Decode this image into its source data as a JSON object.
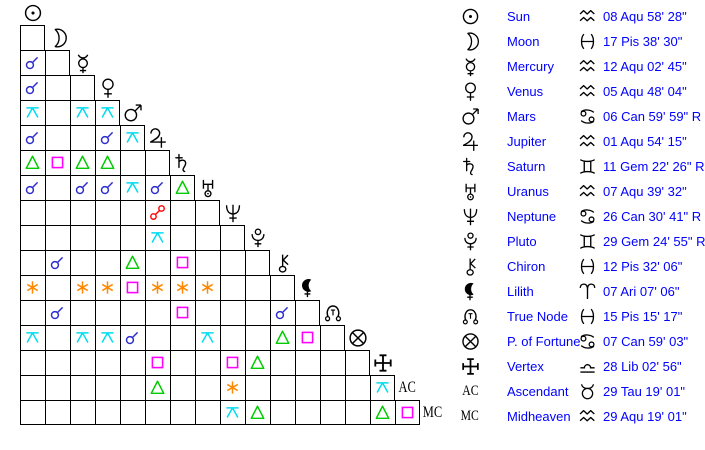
{
  "colors": {
    "table_text": "#0000ff",
    "glyph": "#000000",
    "grid_line": "#000000",
    "conjunction": "#2e2ecf",
    "sextile": "#ff8800",
    "square": "#ff00ff",
    "trine": "#00cc00",
    "quincunx": "#00dcf0",
    "opposition": "#ff0000"
  },
  "planets": [
    {
      "id": "sun",
      "name": "Sun",
      "icon": "sun-icon",
      "sign": "aquarius",
      "sign_icon": "aquarius-icon",
      "position": "08 Aqu 58' 28\""
    },
    {
      "id": "moon",
      "name": "Moon",
      "icon": "moon-icon",
      "sign": "pisces",
      "sign_icon": "pisces-icon",
      "position": "17 Pis 38' 30\""
    },
    {
      "id": "mercury",
      "name": "Mercury",
      "icon": "mercury-icon",
      "sign": "aquarius",
      "sign_icon": "aquarius-icon",
      "position": "12 Aqu 02' 45\""
    },
    {
      "id": "venus",
      "name": "Venus",
      "icon": "venus-icon",
      "sign": "aquarius",
      "sign_icon": "aquarius-icon",
      "position": "05 Aqu 48' 04\""
    },
    {
      "id": "mars",
      "name": "Mars",
      "icon": "mars-icon",
      "sign": "cancer",
      "sign_icon": "cancer-icon",
      "position": "06 Can 59' 59\" R"
    },
    {
      "id": "jupiter",
      "name": "Jupiter",
      "icon": "jupiter-icon",
      "sign": "aquarius",
      "sign_icon": "aquarius-icon",
      "position": "01 Aqu 54' 15\""
    },
    {
      "id": "saturn",
      "name": "Saturn",
      "icon": "saturn-icon",
      "sign": "gemini",
      "sign_icon": "gemini-icon",
      "position": "11 Gem 22' 26\" R"
    },
    {
      "id": "uranus",
      "name": "Uranus",
      "icon": "uranus-icon",
      "sign": "aquarius",
      "sign_icon": "aquarius-icon",
      "position": "07 Aqu 39' 32\""
    },
    {
      "id": "neptune",
      "name": "Neptune",
      "icon": "neptune-icon",
      "sign": "cancer",
      "sign_icon": "cancer-icon",
      "position": "26 Can 30' 41\" R"
    },
    {
      "id": "pluto",
      "name": "Pluto",
      "icon": "pluto-icon",
      "sign": "gemini",
      "sign_icon": "gemini-icon",
      "position": "29 Gem 24' 55\" R"
    },
    {
      "id": "chiron",
      "name": "Chiron",
      "icon": "chiron-icon",
      "sign": "pisces",
      "sign_icon": "pisces-icon",
      "position": "12 Pis 32' 06\""
    },
    {
      "id": "lilith",
      "name": "Lilith",
      "icon": "lilith-icon",
      "sign": "aries",
      "sign_icon": "aries-icon",
      "position": "07 Ari 07' 06\""
    },
    {
      "id": "truenode",
      "name": "True Node",
      "icon": "truenode-icon",
      "sign": "pisces",
      "sign_icon": "pisces-icon",
      "position": "15 Pis 15' 17\""
    },
    {
      "id": "fortune",
      "name": "P. of Fortune",
      "icon": "fortune-icon",
      "sign": "cancer",
      "sign_icon": "cancer-icon",
      "position": "07 Can 59' 03\""
    },
    {
      "id": "vertex",
      "name": "Vertex",
      "icon": "vertex-icon",
      "sign": "libra",
      "sign_icon": "libra-icon",
      "position": "28 Lib 02' 56\""
    },
    {
      "id": "ac",
      "name": "Ascendant",
      "icon": "ac-label",
      "glyph_text": "AC",
      "sign": "taurus",
      "sign_icon": "taurus-icon",
      "position": "29 Tau 19' 01\""
    },
    {
      "id": "mc",
      "name": "Midheaven",
      "icon": "mc-label",
      "glyph_text": "MC",
      "sign": "aquarius",
      "sign_icon": "aquarius-icon",
      "position": "29 Aqu 19' 01\""
    }
  ],
  "aspects": [
    {
      "row": 2,
      "col": 0,
      "type": "conjunction"
    },
    {
      "row": 3,
      "col": 0,
      "type": "conjunction"
    },
    {
      "row": 4,
      "col": 0,
      "type": "quincunx"
    },
    {
      "row": 4,
      "col": 2,
      "type": "quincunx"
    },
    {
      "row": 4,
      "col": 3,
      "type": "quincunx"
    },
    {
      "row": 5,
      "col": 0,
      "type": "conjunction"
    },
    {
      "row": 5,
      "col": 3,
      "type": "conjunction"
    },
    {
      "row": 5,
      "col": 4,
      "type": "quincunx"
    },
    {
      "row": 6,
      "col": 0,
      "type": "trine"
    },
    {
      "row": 6,
      "col": 1,
      "type": "square"
    },
    {
      "row": 6,
      "col": 2,
      "type": "trine"
    },
    {
      "row": 6,
      "col": 3,
      "type": "trine"
    },
    {
      "row": 7,
      "col": 0,
      "type": "conjunction"
    },
    {
      "row": 7,
      "col": 2,
      "type": "conjunction"
    },
    {
      "row": 7,
      "col": 3,
      "type": "conjunction"
    },
    {
      "row": 7,
      "col": 4,
      "type": "quincunx"
    },
    {
      "row": 7,
      "col": 5,
      "type": "conjunction"
    },
    {
      "row": 7,
      "col": 6,
      "type": "trine"
    },
    {
      "row": 8,
      "col": 5,
      "type": "opposition"
    },
    {
      "row": 9,
      "col": 5,
      "type": "quincunx"
    },
    {
      "row": 10,
      "col": 1,
      "type": "conjunction"
    },
    {
      "row": 10,
      "col": 4,
      "type": "trine"
    },
    {
      "row": 10,
      "col": 6,
      "type": "square"
    },
    {
      "row": 11,
      "col": 0,
      "type": "sextile"
    },
    {
      "row": 11,
      "col": 2,
      "type": "sextile"
    },
    {
      "row": 11,
      "col": 3,
      "type": "sextile"
    },
    {
      "row": 11,
      "col": 4,
      "type": "square"
    },
    {
      "row": 11,
      "col": 5,
      "type": "sextile"
    },
    {
      "row": 11,
      "col": 6,
      "type": "sextile"
    },
    {
      "row": 11,
      "col": 7,
      "type": "sextile"
    },
    {
      "row": 12,
      "col": 1,
      "type": "conjunction"
    },
    {
      "row": 12,
      "col": 6,
      "type": "square"
    },
    {
      "row": 12,
      "col": 10,
      "type": "conjunction"
    },
    {
      "row": 13,
      "col": 0,
      "type": "quincunx"
    },
    {
      "row": 13,
      "col": 2,
      "type": "quincunx"
    },
    {
      "row": 13,
      "col": 3,
      "type": "quincunx"
    },
    {
      "row": 13,
      "col": 4,
      "type": "conjunction"
    },
    {
      "row": 13,
      "col": 7,
      "type": "quincunx"
    },
    {
      "row": 13,
      "col": 10,
      "type": "trine"
    },
    {
      "row": 13,
      "col": 11,
      "type": "square"
    },
    {
      "row": 14,
      "col": 5,
      "type": "square"
    },
    {
      "row": 14,
      "col": 8,
      "type": "square"
    },
    {
      "row": 14,
      "col": 9,
      "type": "trine"
    },
    {
      "row": 15,
      "col": 5,
      "type": "trine"
    },
    {
      "row": 15,
      "col": 8,
      "type": "sextile"
    },
    {
      "row": 15,
      "col": 14,
      "type": "quincunx"
    },
    {
      "row": 16,
      "col": 8,
      "type": "quincunx"
    },
    {
      "row": 16,
      "col": 9,
      "type": "trine"
    },
    {
      "row": 16,
      "col": 14,
      "type": "trine"
    },
    {
      "row": 16,
      "col": 15,
      "type": "square"
    }
  ]
}
